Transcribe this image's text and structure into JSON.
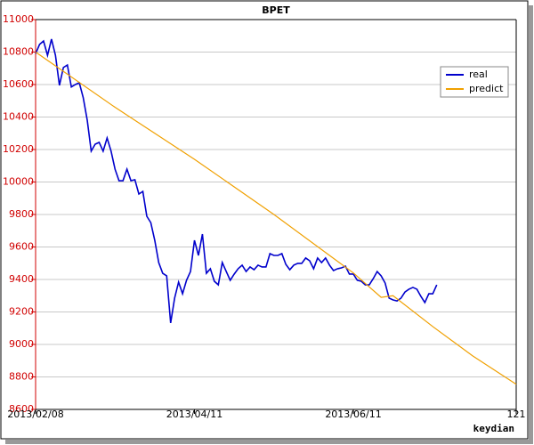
{
  "chart_data": {
    "type": "line",
    "title": "BPET",
    "xlabel": "keydian",
    "series": [
      {
        "name": "real",
        "color": "#0000cc",
        "x": [
          0,
          1,
          2,
          3,
          4,
          5,
          6,
          7,
          8,
          9,
          10,
          11,
          12,
          13,
          14,
          15,
          16,
          17,
          18,
          19,
          20,
          21,
          22,
          23,
          24,
          25,
          26,
          27,
          28,
          29,
          30,
          31,
          32,
          33,
          34,
          35,
          36,
          37,
          38,
          39,
          40,
          41,
          42,
          43,
          44,
          45,
          46,
          47,
          48,
          49,
          50,
          51,
          52,
          53,
          54,
          55,
          56,
          57,
          58,
          59,
          60,
          61,
          62,
          63,
          64,
          65,
          66,
          67,
          68,
          69,
          70,
          71,
          72,
          73,
          74,
          75,
          76,
          77,
          78,
          79,
          80,
          81,
          82,
          83,
          84,
          85,
          86,
          87,
          88,
          89,
          90,
          91,
          92,
          93,
          94,
          95,
          96,
          97,
          98,
          99,
          100,
          101
        ],
        "values": [
          10790,
          10847,
          10868,
          10780,
          10880,
          10780,
          10595,
          10705,
          10720,
          10585,
          10600,
          10611,
          10518,
          10381,
          10190,
          10233,
          10244,
          10190,
          10271,
          10190,
          10079,
          10008,
          10008,
          10079,
          10008,
          10014,
          9926,
          9942,
          9789,
          9750,
          9641,
          9504,
          9438,
          9422,
          9132,
          9285,
          9384,
          9312,
          9395,
          9449,
          9641,
          9548,
          9679,
          9438,
          9466,
          9389,
          9367,
          9504,
          9449,
          9395,
          9433,
          9466,
          9488,
          9449,
          9477,
          9460,
          9488,
          9477,
          9477,
          9559,
          9548,
          9548,
          9559,
          9493,
          9460,
          9488,
          9499,
          9499,
          9532,
          9515,
          9466,
          9532,
          9504,
          9532,
          9488,
          9455,
          9466,
          9471,
          9482,
          9433,
          9433,
          9395,
          9389,
          9367,
          9367,
          9405,
          9449,
          9422,
          9378,
          9285,
          9274,
          9268,
          9285,
          9323,
          9340,
          9351,
          9340,
          9296,
          9258,
          9312,
          9312,
          9367
        ]
      },
      {
        "name": "predict",
        "color": "#f0a000",
        "x": [
          0,
          20,
          40,
          60,
          80,
          87,
          90,
          100,
          110,
          121
        ],
        "values": [
          10800,
          10460,
          10140,
          9800,
          9440,
          9290,
          9300,
          9110,
          8930,
          8755
        ]
      }
    ],
    "xlim": [
      0,
      121
    ],
    "xticks": [
      {
        "value": 0,
        "label": "2013/02/08"
      },
      {
        "value": 40,
        "label": "2013/04/11"
      },
      {
        "value": 80,
        "label": "2013/06/11"
      },
      121
    ],
    "ylim": [
      8600,
      11000
    ],
    "yticks": [
      8600,
      8800,
      9000,
      9200,
      9400,
      9600,
      9800,
      10000,
      10200,
      10400,
      10600,
      10800,
      11000
    ],
    "grid": true,
    "legend": "upper right"
  }
}
